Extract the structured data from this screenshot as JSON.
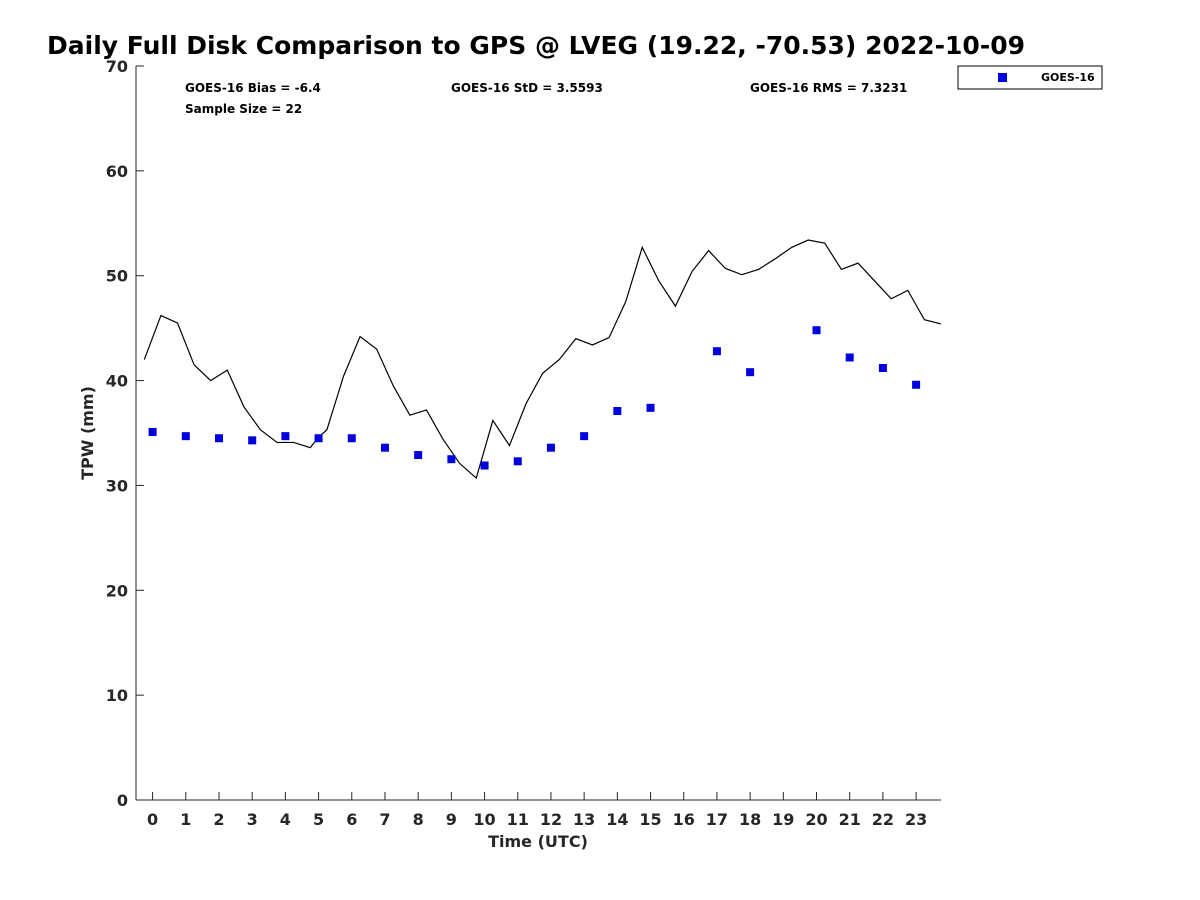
{
  "chart_data": {
    "type": "scatter",
    "title": "Daily Full Disk Comparison to GPS @ LVEG (19.22, -70.53) 2022-10-09",
    "xlabel": "Time (UTC)",
    "ylabel": "TPW (mm)",
    "xlim": [
      -0.5,
      23.75
    ],
    "ylim": [
      0,
      70
    ],
    "xticks": [
      0,
      1,
      2,
      3,
      4,
      5,
      6,
      7,
      8,
      9,
      10,
      11,
      12,
      13,
      14,
      15,
      16,
      17,
      18,
      19,
      20,
      21,
      22,
      23
    ],
    "yticks": [
      0,
      10,
      20,
      30,
      40,
      50,
      60,
      70
    ],
    "grid": false,
    "legend_position": "top-right, outside axes",
    "stats": {
      "bias": "GOES-16 Bias = -6.4",
      "std": "GOES-16 StD = 3.5593",
      "rms": "GOES-16 RMS = 7.3231",
      "sample": "Sample Size = 22"
    },
    "series": [
      {
        "name": "GOES-16",
        "kind": "scatter",
        "marker": "square",
        "color": "#0000dd",
        "x": [
          0,
          1,
          2,
          3,
          4,
          5,
          6,
          7,
          8,
          9,
          10,
          11,
          12,
          13,
          14,
          15,
          17,
          18,
          20,
          21,
          22,
          23
        ],
        "y": [
          35.1,
          34.7,
          34.5,
          34.3,
          34.7,
          34.5,
          34.5,
          33.6,
          32.9,
          32.5,
          31.9,
          32.3,
          33.6,
          34.7,
          37.1,
          37.4,
          42.8,
          40.8,
          44.8,
          42.2,
          41.2,
          39.6
        ]
      },
      {
        "kind": "line",
        "color": "#000000",
        "x": [
          -0.25,
          0.25,
          0.75,
          1.25,
          1.75,
          2.25,
          2.75,
          3.25,
          3.75,
          4.25,
          4.75,
          5.0,
          5.25,
          5.75,
          6.25,
          6.75,
          7.25,
          7.75,
          8.25,
          8.75,
          9.25,
          9.75,
          10.25,
          10.75,
          11.25,
          11.75,
          12.25,
          12.75,
          13.25,
          13.75,
          14.25,
          14.75,
          15.25,
          15.75,
          16.25,
          16.75,
          17.25,
          17.75,
          18.25,
          18.75,
          19.25,
          19.75,
          20.25,
          20.75,
          21.25,
          21.75,
          22.25,
          22.75,
          23.25,
          23.75
        ],
        "y": [
          42.0,
          46.2,
          45.5,
          41.5,
          40.0,
          41.0,
          37.5,
          35.3,
          34.1,
          34.1,
          33.6,
          34.6,
          35.3,
          40.4,
          44.2,
          43.0,
          39.5,
          36.7,
          37.2,
          34.4,
          32.1,
          30.7,
          36.2,
          33.8,
          37.8,
          40.7,
          42.0,
          44.0,
          43.4,
          44.1,
          47.5,
          52.7,
          49.5,
          47.1,
          50.4,
          52.4,
          50.7,
          50.1,
          50.6,
          51.6,
          52.7,
          53.4,
          53.1,
          50.6,
          51.2,
          49.5,
          47.8,
          48.6,
          45.8,
          45.4
        ]
      }
    ]
  }
}
